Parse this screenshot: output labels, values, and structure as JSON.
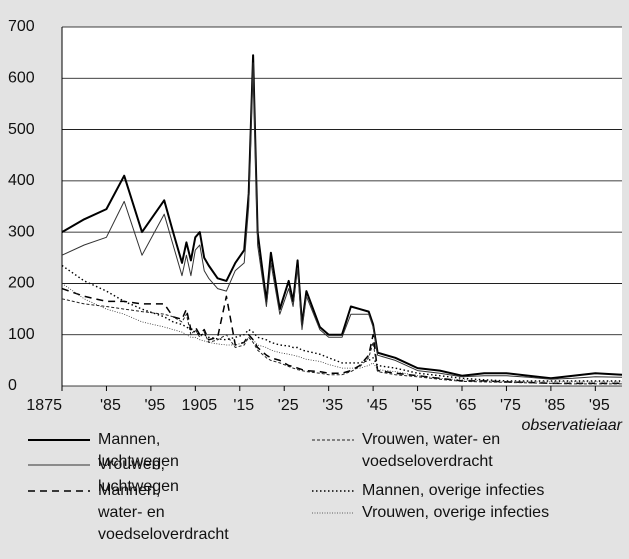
{
  "chart_data": {
    "type": "line",
    "xlabel": "observatiejaar",
    "x": [
      1875,
      1880,
      1885,
      1889,
      1893,
      1898,
      1900,
      1902,
      1903,
      1904,
      1905,
      1906,
      1907,
      1908,
      1910,
      1912,
      1914,
      1916,
      1917,
      1918,
      1919,
      1921,
      1922,
      1924,
      1926,
      1927,
      1928,
      1929,
      1930,
      1933,
      1935,
      1938,
      1940,
      1942,
      1944,
      1945,
      1946,
      1950,
      1955,
      1960,
      1965,
      1970,
      1975,
      1980,
      1985,
      1990,
      1995,
      2001
    ],
    "series": [
      {
        "name": "Mannen, luchtwegen",
        "color": "#000000",
        "style": "thick",
        "values": [
          300,
          325,
          345,
          410,
          300,
          362,
          300,
          240,
          280,
          245,
          290,
          300,
          250,
          235,
          210,
          205,
          240,
          265,
          375,
          645,
          300,
          165,
          260,
          150,
          205,
          165,
          245,
          120,
          185,
          115,
          100,
          100,
          155,
          150,
          145,
          120,
          65,
          55,
          35,
          30,
          20,
          25,
          25,
          20,
          15,
          20,
          25,
          22
        ]
      },
      {
        "name": "Vrouwen, luchtwegen",
        "color": "#333333",
        "style": "thin",
        "values": [
          255,
          275,
          290,
          360,
          255,
          335,
          275,
          215,
          255,
          215,
          265,
          275,
          225,
          210,
          190,
          185,
          225,
          240,
          350,
          630,
          275,
          155,
          240,
          140,
          190,
          155,
          230,
          110,
          175,
          110,
          95,
          95,
          140,
          140,
          140,
          115,
          60,
          50,
          30,
          25,
          18,
          20,
          20,
          17,
          13,
          15,
          18,
          17
        ]
      },
      {
        "name": "Mannen, water- en voedseloverdracht",
        "color": "#000000",
        "style": "dashed",
        "values": [
          190,
          175,
          165,
          165,
          160,
          160,
          135,
          130,
          150,
          110,
          115,
          100,
          110,
          90,
          95,
          175,
          80,
          85,
          100,
          90,
          75,
          60,
          55,
          50,
          40,
          38,
          35,
          32,
          30,
          28,
          25,
          25,
          30,
          40,
          60,
          100,
          30,
          25,
          20,
          15,
          10,
          10,
          8,
          7,
          5,
          5,
          5,
          5
        ]
      },
      {
        "name": "Vrouwen, water- en voedseloverdracht",
        "color": "#222222",
        "style": "short-dashed",
        "values": [
          170,
          160,
          155,
          150,
          145,
          140,
          135,
          125,
          140,
          100,
          110,
          95,
          105,
          85,
          90,
          100,
          75,
          80,
          95,
          85,
          70,
          55,
          50,
          45,
          38,
          35,
          32,
          30,
          28,
          25,
          22,
          22,
          28,
          38,
          55,
          85,
          28,
          22,
          18,
          13,
          9,
          8,
          7,
          6,
          5,
          4,
          4,
          4
        ]
      },
      {
        "name": "Mannen, overige infecties",
        "color": "#000000",
        "style": "dotted",
        "values": [
          235,
          205,
          185,
          165,
          150,
          135,
          125,
          120,
          115,
          110,
          105,
          100,
          100,
          95,
          92,
          90,
          95,
          100,
          110,
          105,
          95,
          90,
          85,
          80,
          78,
          75,
          75,
          70,
          68,
          62,
          55,
          45,
          45,
          45,
          50,
          55,
          40,
          35,
          25,
          20,
          15,
          12,
          10,
          10,
          10,
          10,
          10,
          10
        ]
      },
      {
        "name": "Vrouwen, overige infecties",
        "color": "#333333",
        "style": "fine-dotted",
        "values": [
          200,
          170,
          150,
          140,
          125,
          115,
          110,
          105,
          100,
          95,
          95,
          90,
          88,
          85,
          82,
          80,
          80,
          85,
          95,
          90,
          80,
          75,
          70,
          65,
          62,
          60,
          58,
          55,
          52,
          48,
          42,
          35,
          35,
          35,
          40,
          45,
          32,
          28,
          20,
          15,
          12,
          10,
          8,
          8,
          8,
          8,
          8,
          8
        ]
      }
    ],
    "xlim": [
      1875,
      2001
    ],
    "xticks": [
      1875,
      {
        "value": 1885,
        "label": "'85"
      },
      {
        "value": 1895,
        "label": "'95"
      },
      1905,
      {
        "value": 1915,
        "label": "'15"
      },
      {
        "value": 1925,
        "label": "'25"
      },
      {
        "value": 1935,
        "label": "'35"
      },
      {
        "value": 1945,
        "label": "'45"
      },
      {
        "value": 1955,
        "label": "'55"
      },
      {
        "value": 1965,
        "label": "'65"
      },
      {
        "value": 1975,
        "label": "'75"
      },
      {
        "value": 1985,
        "label": "'85"
      },
      {
        "value": 1995,
        "label": "'95"
      }
    ],
    "ylim": [
      0,
      700
    ],
    "yticks": [
      0,
      100,
      200,
      300,
      400,
      500,
      600,
      700
    ],
    "grid": true
  }
}
